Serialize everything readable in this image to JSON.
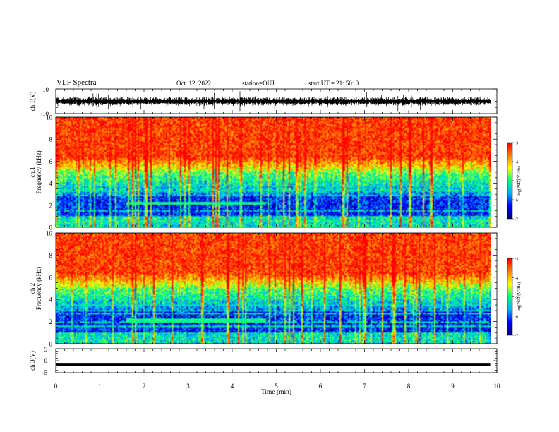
{
  "header": {
    "title": "VLF Spectra",
    "date": "Oct. 12, 2022",
    "station": "station=OUJ",
    "start": "start  UT =   21: 50: 0"
  },
  "chart_data": {
    "type": "heatmap",
    "x_axis": {
      "label": "Time (min)",
      "lim": [
        0,
        10
      ],
      "ticks": [
        "0",
        "1",
        "2",
        "3",
        "4",
        "5",
        "6",
        "7",
        "8",
        "9",
        "10"
      ]
    },
    "panels": [
      {
        "name": "ch1-waveform",
        "type": "line",
        "ylabel": "ch.1(V)",
        "ylim": [
          -10,
          10
        ],
        "ytick_labels": [
          "10",
          "-10"
        ],
        "x_end": 9.85,
        "baseline": 0
      },
      {
        "name": "ch1-spectrogram",
        "type": "heatmap",
        "ylabel": "ch.1\nFrequency (kHz)",
        "ylim": [
          0,
          10
        ],
        "ytick_labels": [
          "0",
          "2",
          "4",
          "6",
          "8",
          "10"
        ],
        "x_end": 9.85,
        "band_tone": {
          "t_start": 1.6,
          "t_end": 4.75,
          "freq_khz": 2.2,
          "log_psd": -5.0
        },
        "colorbar": {
          "label": "log(PSD)(V²/Hz)",
          "range": [
            -7,
            -3
          ],
          "tick_labels": [
            "-3",
            "-4",
            "-5",
            "-6",
            "-7"
          ]
        }
      },
      {
        "name": "ch2-spectrogram",
        "type": "heatmap",
        "ylabel": "ch.2\nFrequency (kHz)",
        "ylim": [
          0,
          10
        ],
        "ytick_labels": [
          "0",
          "2",
          "4",
          "6",
          "8",
          "10"
        ],
        "x_end": 9.85,
        "band_tone": {
          "t_start": 1.6,
          "t_end": 4.75,
          "freq_khz": 2.1,
          "log_psd": -5.0
        },
        "colorbar": {
          "label": "log(PSD)(V²/Hz)",
          "range": [
            -7,
            -3
          ],
          "tick_labels": [
            "-3",
            "-4",
            "-5",
            "-6",
            "-7"
          ]
        }
      },
      {
        "name": "ch3-waveform",
        "type": "line",
        "ylabel": "ch.3(V)",
        "ylim": [
          -5,
          5
        ],
        "ytick_labels": [
          "5",
          "0",
          "-5"
        ],
        "x_end": 9.85,
        "constant_value": -1.5
      }
    ],
    "colormap": [
      "#000080",
      "#0000ff",
      "#00b0ff",
      "#00ff80",
      "#ffff00",
      "#ff8000",
      "#ff0000"
    ]
  }
}
